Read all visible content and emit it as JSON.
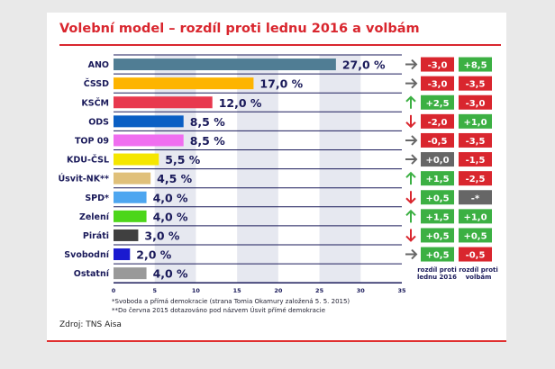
{
  "title": "Volební model – rozdíl proti lednu 2016 a volbám",
  "footnotes": [
    "*Svoboda a přímá demokracie (strana Tomia Okamury založená 5. 5. 2015)",
    "**Do června 2015 dotazováno pod názvem Úsvit přímé demokracie"
  ],
  "source": "Zdroj: TNS Aisa",
  "column_headers": {
    "jan": "rozdíl proti lednu 2016",
    "election": "rozdíl proti volbám"
  },
  "colors": {
    "title": "#d9262e",
    "positive": "#3cb043",
    "negative": "#d9262e",
    "neutral": "#666666"
  },
  "chart_data": {
    "type": "bar",
    "orientation": "horizontal",
    "xlim": [
      0,
      35
    ],
    "xticks": [
      0,
      5,
      10,
      15,
      20,
      25,
      30,
      35
    ],
    "categories": [
      "ANO",
      "ČSSD",
      "KSČM",
      "ODS",
      "TOP 09",
      "KDU-ČSL",
      "Úsvit-NK**",
      "SPD*",
      "Zelení",
      "Piráti",
      "Svobodní",
      "Ostatní"
    ],
    "values": [
      27.0,
      17.0,
      12.0,
      8.5,
      8.5,
      5.5,
      4.5,
      4.0,
      4.0,
      3.0,
      2.0,
      4.0
    ],
    "labels": [
      "27,0 %",
      "17,0 %",
      "12,0 %",
      "8,5 %",
      "8,5 %",
      "5,5 %",
      "4,5 %",
      "4,0 %",
      "4,0 %",
      "3,0 %",
      "2,0 %",
      "4,0 %"
    ],
    "bar_colors": [
      "#507d94",
      "#fdb400",
      "#e8384e",
      "#0a5fc4",
      "#f06ef0",
      "#f5e600",
      "#e0c07a",
      "#4da6f0",
      "#4cd61a",
      "#404040",
      "#1a1ad0",
      "#999999"
    ],
    "trend": [
      "right",
      "right",
      "up",
      "down",
      "right",
      "right",
      "up",
      "down",
      "up",
      "down",
      "right",
      ""
    ],
    "diff_jan": [
      "-3,0",
      "-3,0",
      "+2,5",
      "-2,0",
      "-0,5",
      "+0,0",
      "+1,5",
      "+0,5",
      "+1,5",
      "+0,5",
      "+0,5",
      ""
    ],
    "diff_election": [
      "+8,5",
      "-3,5",
      "-3,0",
      "+1,0",
      "-3,5",
      "-1,5",
      "-2,5",
      "-*",
      "+1,0",
      "+0,5",
      "-0,5",
      ""
    ]
  }
}
